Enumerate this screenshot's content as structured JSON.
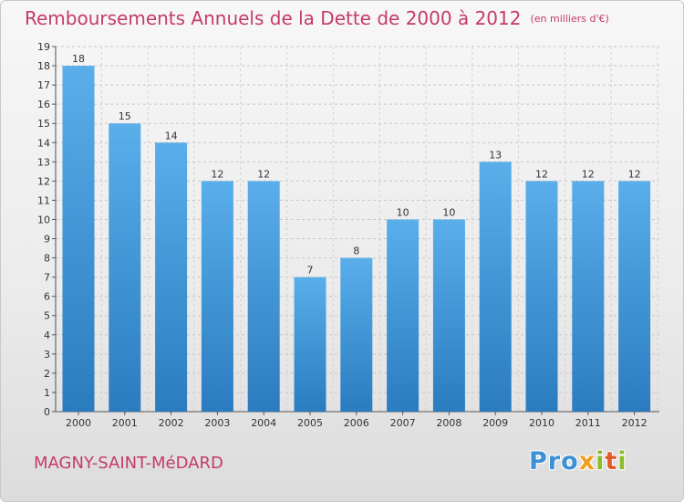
{
  "chart_data": {
    "type": "bar",
    "title": "Remboursements Annuels de la Dette de 2000 à 2012",
    "unit_note": "(en milliers d'€)",
    "categories": [
      "2000",
      "2001",
      "2002",
      "2003",
      "2004",
      "2005",
      "2006",
      "2007",
      "2008",
      "2009",
      "2010",
      "2011",
      "2012"
    ],
    "values": [
      18,
      15,
      14,
      12,
      12,
      7,
      8,
      10,
      10,
      13,
      12,
      12,
      12
    ],
    "ylim": [
      0,
      19
    ],
    "yticks": [
      0,
      1,
      2,
      3,
      4,
      5,
      6,
      7,
      8,
      9,
      10,
      11,
      12,
      13,
      14,
      15,
      16,
      17,
      18,
      19
    ],
    "xlabel": "",
    "ylabel": "",
    "grid": true,
    "bar_color_top": "#5aaeea",
    "bar_color_bottom": "#2a7cbf"
  },
  "footer": {
    "commune": "MAGNY-SAINT-MéDARD",
    "logo": [
      "P",
      "r",
      "o",
      "x",
      "i",
      "t",
      "i"
    ]
  },
  "colors": {
    "title": "#c43a6c",
    "logo": [
      "#3d8fd6",
      "#3d8fd6",
      "#3d8fd6",
      "#f0a020",
      "#8cbc2a",
      "#e05a2a",
      "#8cbc2a"
    ]
  }
}
